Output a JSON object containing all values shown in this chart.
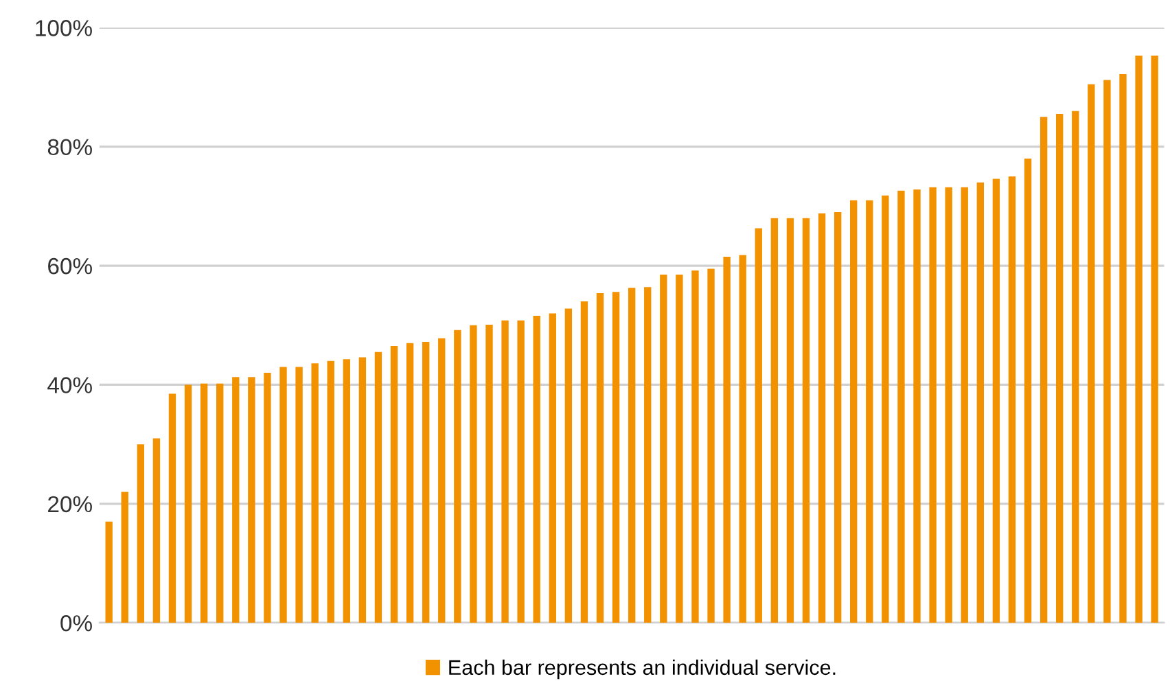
{
  "chart_data": {
    "type": "bar",
    "categories": [
      null,
      null,
      null,
      null,
      null,
      null,
      null,
      null,
      null,
      null,
      null,
      null,
      null,
      null,
      null,
      null,
      null,
      null,
      null,
      null,
      null,
      null,
      null,
      null,
      null,
      null,
      null,
      null,
      null,
      null,
      null,
      null,
      null,
      null,
      null,
      null,
      null,
      null,
      null,
      null,
      null,
      null,
      null,
      null,
      null,
      null,
      null,
      null,
      null,
      null,
      null,
      null,
      null,
      null,
      null,
      null,
      null,
      null,
      null,
      null,
      null,
      null,
      null,
      null,
      null,
      null,
      null
    ],
    "series": [
      {
        "name": "Each bar represents an individual service.",
        "color": "#f39200",
        "values": [
          17,
          22,
          30,
          31,
          38.5,
          40,
          40.2,
          40.2,
          41.3,
          41.3,
          42,
          43,
          43,
          43.6,
          44,
          44.3,
          44.6,
          45.5,
          46.5,
          47,
          47.2,
          47.8,
          49.2,
          50,
          50.1,
          50.8,
          50.8,
          51.6,
          52,
          52.8,
          54,
          55.4,
          55.6,
          56.3,
          56.4,
          58.5,
          58.5,
          59.2,
          59.5,
          61.5,
          61.8,
          66.3,
          68,
          68,
          68,
          68.8,
          69,
          71,
          71,
          71.8,
          72.6,
          72.8,
          73.2,
          73.2,
          73.2,
          74,
          74.6,
          75,
          78,
          85,
          85.5,
          86,
          90.5,
          91.2,
          92.2,
          95.3,
          95.3
        ]
      }
    ],
    "ylim": [
      0,
      100
    ],
    "yticks": [
      {
        "value": 0,
        "label": "0%"
      },
      {
        "value": 20,
        "label": "20%"
      },
      {
        "value": 40,
        "label": "40%"
      },
      {
        "value": 60,
        "label": "60%"
      },
      {
        "value": 80,
        "label": "80%"
      },
      {
        "value": 100,
        "label": "100%"
      }
    ],
    "grid": "y",
    "legend": "bottom"
  }
}
